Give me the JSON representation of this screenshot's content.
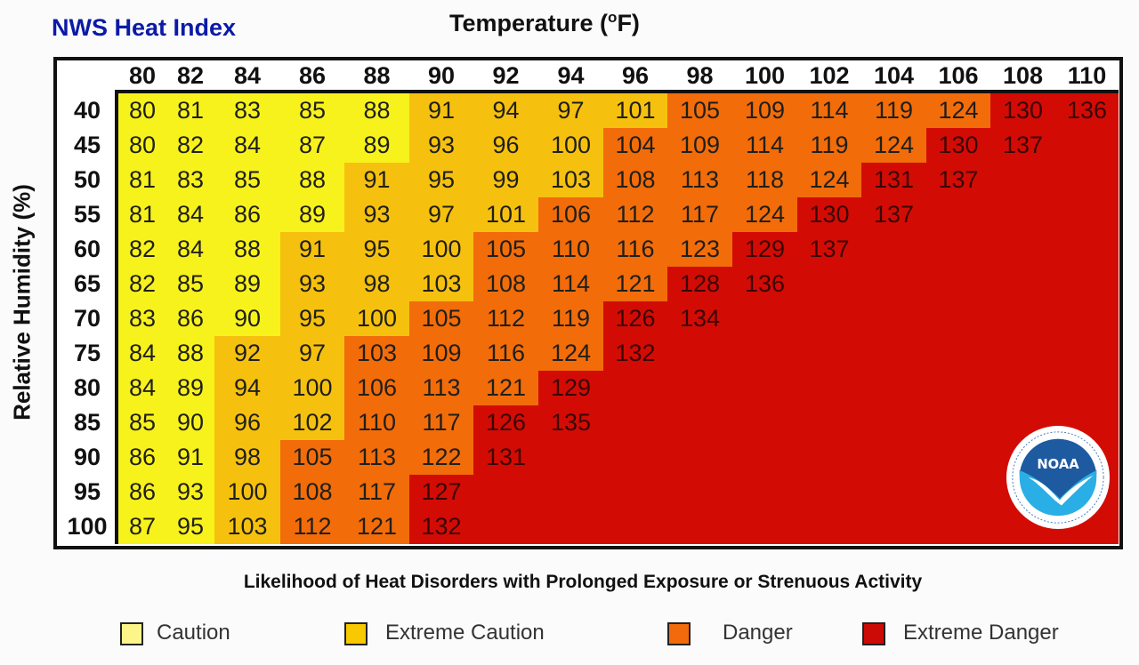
{
  "title": "NWS Heat Index",
  "chart_data": {
    "type": "heatmap",
    "title": "NWS Heat Index",
    "xlabel": "Temperature (oF)",
    "xlabel_main": "Temperature (",
    "xlabel_sup": "o",
    "xlabel_end": "F)",
    "ylabel": "Relative Humidity (%)",
    "x": [
      80,
      82,
      84,
      86,
      88,
      90,
      92,
      94,
      96,
      98,
      100,
      102,
      104,
      106,
      108,
      110
    ],
    "y": [
      40,
      45,
      50,
      55,
      60,
      65,
      70,
      75,
      80,
      85,
      90,
      95,
      100
    ],
    "values": [
      [
        80,
        81,
        83,
        85,
        88,
        91,
        94,
        97,
        101,
        105,
        109,
        114,
        119,
        124,
        130,
        136
      ],
      [
        80,
        82,
        84,
        87,
        89,
        93,
        96,
        100,
        104,
        109,
        114,
        119,
        124,
        130,
        137,
        null
      ],
      [
        81,
        83,
        85,
        88,
        91,
        95,
        99,
        103,
        108,
        113,
        118,
        124,
        131,
        137,
        null,
        null
      ],
      [
        81,
        84,
        86,
        89,
        93,
        97,
        101,
        106,
        112,
        117,
        124,
        130,
        137,
        null,
        null,
        null
      ],
      [
        82,
        84,
        88,
        91,
        95,
        100,
        105,
        110,
        116,
        123,
        129,
        137,
        null,
        null,
        null,
        null
      ],
      [
        82,
        85,
        89,
        93,
        98,
        103,
        108,
        114,
        121,
        128,
        136,
        null,
        null,
        null,
        null,
        null
      ],
      [
        83,
        86,
        90,
        95,
        100,
        105,
        112,
        119,
        126,
        134,
        null,
        null,
        null,
        null,
        null,
        null
      ],
      [
        84,
        88,
        92,
        97,
        103,
        109,
        116,
        124,
        132,
        null,
        null,
        null,
        null,
        null,
        null,
        null
      ],
      [
        84,
        89,
        94,
        100,
        106,
        113,
        121,
        129,
        null,
        null,
        null,
        null,
        null,
        null,
        null,
        null
      ],
      [
        85,
        90,
        96,
        102,
        110,
        117,
        126,
        135,
        null,
        null,
        null,
        null,
        null,
        null,
        null,
        null
      ],
      [
        86,
        91,
        98,
        105,
        113,
        122,
        131,
        null,
        null,
        null,
        null,
        null,
        null,
        null,
        null,
        null
      ],
      [
        86,
        93,
        100,
        108,
        117,
        127,
        null,
        null,
        null,
        null,
        null,
        null,
        null,
        null,
        null,
        null
      ],
      [
        87,
        95,
        103,
        112,
        121,
        132,
        null,
        null,
        null,
        null,
        null,
        null,
        null,
        null,
        null,
        null
      ]
    ],
    "levels": [
      [
        0,
        0,
        0,
        0,
        0,
        1,
        1,
        1,
        1,
        2,
        2,
        2,
        2,
        2,
        3,
        3
      ],
      [
        0,
        0,
        0,
        0,
        0,
        1,
        1,
        1,
        2,
        2,
        2,
        2,
        2,
        3,
        3,
        3
      ],
      [
        0,
        0,
        0,
        0,
        1,
        1,
        1,
        1,
        2,
        2,
        2,
        2,
        3,
        3,
        3,
        3
      ],
      [
        0,
        0,
        0,
        0,
        1,
        1,
        1,
        2,
        2,
        2,
        2,
        3,
        3,
        3,
        3,
        3
      ],
      [
        0,
        0,
        0,
        1,
        1,
        1,
        2,
        2,
        2,
        2,
        3,
        3,
        3,
        3,
        3,
        3
      ],
      [
        0,
        0,
        0,
        1,
        1,
        1,
        2,
        2,
        2,
        3,
        3,
        3,
        3,
        3,
        3,
        3
      ],
      [
        0,
        0,
        0,
        1,
        1,
        2,
        2,
        2,
        3,
        3,
        3,
        3,
        3,
        3,
        3,
        3
      ],
      [
        0,
        0,
        1,
        1,
        2,
        2,
        2,
        2,
        3,
        3,
        3,
        3,
        3,
        3,
        3,
        3
      ],
      [
        0,
        0,
        1,
        1,
        2,
        2,
        2,
        3,
        3,
        3,
        3,
        3,
        3,
        3,
        3,
        3
      ],
      [
        0,
        0,
        1,
        1,
        2,
        2,
        3,
        3,
        3,
        3,
        3,
        3,
        3,
        3,
        3,
        3
      ],
      [
        0,
        0,
        1,
        2,
        2,
        2,
        3,
        3,
        3,
        3,
        3,
        3,
        3,
        3,
        3,
        3
      ],
      [
        0,
        0,
        1,
        2,
        2,
        3,
        3,
        3,
        3,
        3,
        3,
        3,
        3,
        3,
        3,
        3
      ],
      [
        0,
        0,
        1,
        2,
        2,
        3,
        3,
        3,
        3,
        3,
        3,
        3,
        3,
        3,
        3,
        3
      ]
    ],
    "legend_title": "Likelihood of Heat Disorders with Prolonged Exposure or Strenuous Activity",
    "legend": [
      {
        "label": "Caution",
        "color": "#f8f21c",
        "swatch": "#fdf58a"
      },
      {
        "label": "Extreme Caution",
        "color": "#f6c10e",
        "swatch": "#f8c800"
      },
      {
        "label": "Danger",
        "color": "#f26c0a",
        "swatch": "#f26a0a"
      },
      {
        "label": "Extreme Danger",
        "color": "#d20c04",
        "swatch": "#cc0a06"
      }
    ],
    "legend_placement": "bottom"
  },
  "logo": {
    "text": "NOAA",
    "dark_blue": "#1e5aa0",
    "light_blue": "#2aaee6"
  }
}
